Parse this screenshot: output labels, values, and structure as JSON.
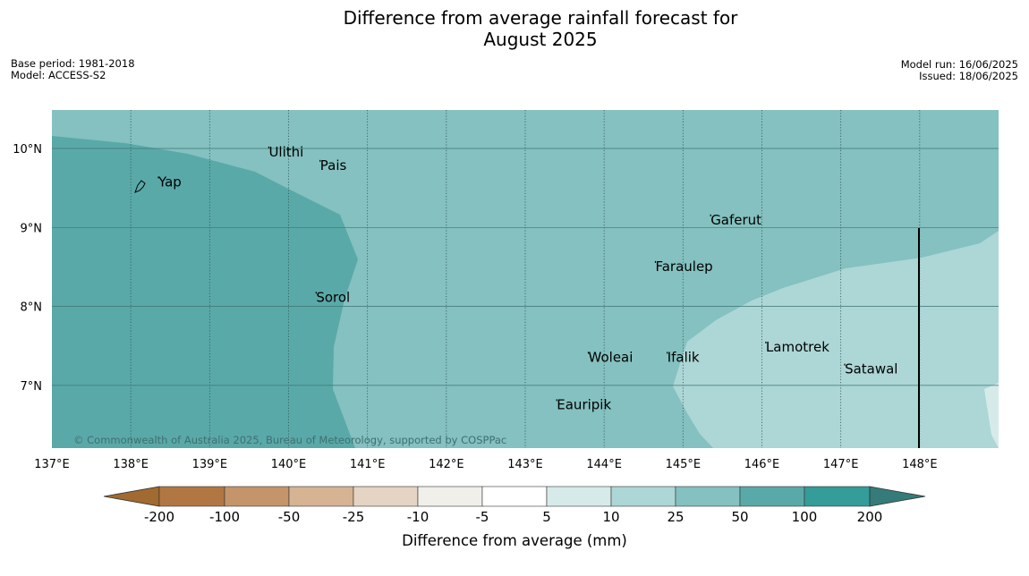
{
  "title": {
    "line1": "Difference from average rainfall forecast for",
    "line2": "August 2025"
  },
  "info_left": {
    "base_period": "Base period: 1981-2018",
    "model": "Model: ACCESS-S2"
  },
  "info_right": {
    "model_run": "Model run: 16/06/2025",
    "issued": "Issued: 18/06/2025"
  },
  "map": {
    "lon_range": [
      137,
      149
    ],
    "lat_range": [
      6.2,
      10.5
    ],
    "lon_ticks": [
      "137°E",
      "138°E",
      "139°E",
      "140°E",
      "141°E",
      "142°E",
      "143°E",
      "144°E",
      "145°E",
      "146°E",
      "147°E",
      "148°E"
    ],
    "lat_ticks": [
      "10°N",
      "9°N",
      "8°N",
      "7°N"
    ],
    "places": [
      {
        "name": "Yap",
        "lon": 138.35,
        "lat": 9.52
      },
      {
        "name": "Ulithi",
        "lon": 139.75,
        "lat": 9.9
      },
      {
        "name": "Pais",
        "lon": 140.4,
        "lat": 9.73
      },
      {
        "name": "Gaferut",
        "lon": 145.35,
        "lat": 9.04
      },
      {
        "name": "Faraulep",
        "lon": 144.65,
        "lat": 8.45
      },
      {
        "name": "Sorol",
        "lon": 140.35,
        "lat": 8.06
      },
      {
        "name": "Woleai",
        "lon": 143.8,
        "lat": 7.3
      },
      {
        "name": "Ifalik",
        "lon": 144.8,
        "lat": 7.3
      },
      {
        "name": "Lamotrek",
        "lon": 146.05,
        "lat": 7.43
      },
      {
        "name": "Satawal",
        "lon": 147.05,
        "lat": 7.15
      },
      {
        "name": "Eauripik",
        "lon": 143.4,
        "lat": 6.7
      }
    ],
    "copyright": "© Commonwealth of Australia 2025, Bureau of Meteorology, supported by COSPPac",
    "colors": {
      "band_50_100": "#5aa9a9",
      "band_25_50": "#84c1c0",
      "band_10_25": "#add6d6",
      "band_5_10": "#d7eaea"
    }
  },
  "colorbar": {
    "labels": [
      "-200",
      "-100",
      "-50",
      "-25",
      "-10",
      "-5",
      "5",
      "10",
      "25",
      "50",
      "100",
      "200"
    ],
    "colors": [
      "#a06a30",
      "#b17743",
      "#c4946a",
      "#d5b393",
      "#e5d3c3",
      "#f1efea",
      "#ffffff",
      "#d7eaea",
      "#add6d6",
      "#84c1c0",
      "#5aa9a9",
      "#349c99",
      "#347b7a"
    ],
    "label": "Difference from average (mm)"
  }
}
